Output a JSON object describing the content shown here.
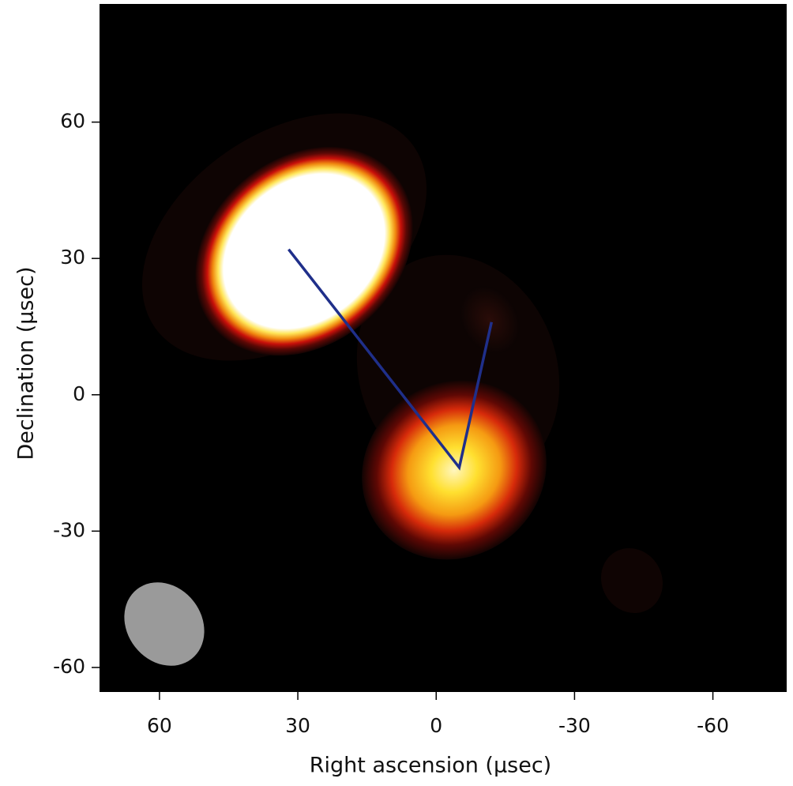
{
  "chart_data": {
    "type": "line",
    "xlabel": "Right ascension (µsec)",
    "ylabel": "Declination (µsec)",
    "x": [
      32,
      -5,
      -12
    ],
    "series": [
      {
        "color": "#1f2f8a",
        "values": [
          32,
          -16,
          16
        ]
      }
    ],
    "xlim": [
      73,
      -76
    ],
    "ylim": [
      -65.4,
      86
    ],
    "xticks": [
      60,
      30,
      0,
      -30,
      -60
    ],
    "yticks": [
      60,
      30,
      0,
      -30,
      -60
    ],
    "background": "#000000"
  }
}
